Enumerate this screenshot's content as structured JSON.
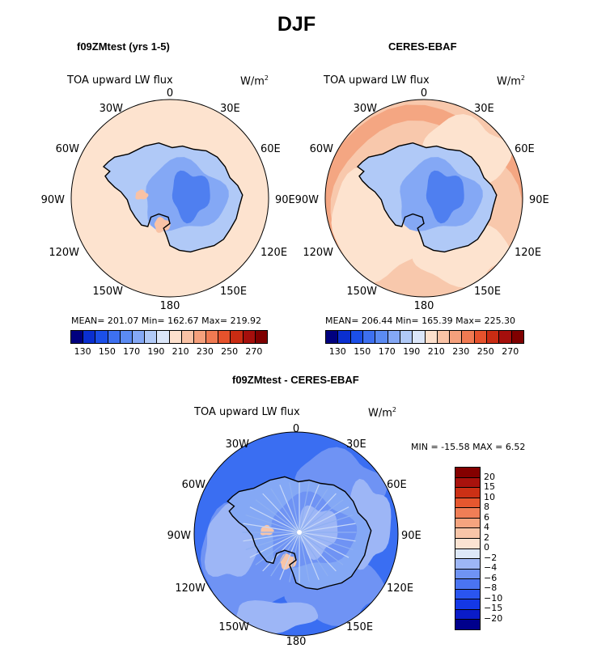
{
  "title": "DJF",
  "panels": [
    {
      "title": "f09ZMtest (yrs 1-5)",
      "variable": "TOA upward LW flux",
      "units": "W/m",
      "units_exp": "2",
      "stats": "MEAN= 201.07    Min= 162.67    Max= 219.92",
      "colorbar_ticks": [
        "130",
        "150",
        "170",
        "190",
        "210",
        "230",
        "250",
        "270"
      ]
    },
    {
      "title": "CERES-EBAF",
      "variable": "TOA upward LW flux",
      "units": "W/m",
      "units_exp": "2",
      "stats": "MEAN= 206.44    Min= 165.39    Max= 225.30",
      "colorbar_ticks": [
        "130",
        "150",
        "170",
        "190",
        "210",
        "230",
        "250",
        "270"
      ]
    },
    {
      "title": "f09ZMtest - CERES-EBAF",
      "variable": "TOA upward LW flux",
      "units": "W/m",
      "units_exp": "2",
      "stats": "MIN = -15.58 MAX =    6.52",
      "colorbar_ticks": [
        "20",
        "15",
        "10",
        "8",
        "6",
        "4",
        "2",
        "0",
        "−2",
        "−4",
        "−6",
        "−8",
        "−10",
        "−15",
        "−20"
      ]
    }
  ],
  "lon_labels": {
    "top": "0",
    "bottom": "180",
    "w30": "30W",
    "e30": "30E",
    "w60": "60W",
    "e60": "60E",
    "w90": "90W",
    "e90": "90E",
    "w120": "120W",
    "e120": "120E",
    "w150": "150W",
    "e150": "150E"
  },
  "chart_data": [
    {
      "type": "heatmap",
      "projection": "south polar stereographic",
      "title": "f09ZMtest (yrs 1-5)",
      "variable": "TOA upward LW flux",
      "units": "W/m2",
      "mean": 201.07,
      "min": 162.67,
      "max": 219.92,
      "contour_levels": [
        130,
        140,
        150,
        160,
        170,
        180,
        190,
        200,
        210,
        220,
        230,
        240,
        250,
        260,
        270
      ],
      "colors": [
        "#00007f",
        "#0a2fd0",
        "#1b4fe8",
        "#3d70f0",
        "#5b8bf2",
        "#84a8f5",
        "#b0c9f7",
        "#dbe6f9",
        "#fde0cc",
        "#f9c2a5",
        "#f5a07c",
        "#f07a52",
        "#e6522c",
        "#c92c13",
        "#a50f0c",
        "#7f0000"
      ]
    },
    {
      "type": "heatmap",
      "projection": "south polar stereographic",
      "title": "CERES-EBAF",
      "variable": "TOA upward LW flux",
      "units": "W/m2",
      "mean": 206.44,
      "min": 165.39,
      "max": 225.3,
      "contour_levels": [
        130,
        140,
        150,
        160,
        170,
        180,
        190,
        200,
        210,
        220,
        230,
        240,
        250,
        260,
        270
      ],
      "colors": [
        "#00007f",
        "#0a2fd0",
        "#1b4fe8",
        "#3d70f0",
        "#5b8bf2",
        "#84a8f5",
        "#b0c9f7",
        "#dbe6f9",
        "#fde0cc",
        "#f9c2a5",
        "#f5a07c",
        "#f07a52",
        "#e6522c",
        "#c92c13",
        "#a50f0c",
        "#7f0000"
      ]
    },
    {
      "type": "heatmap",
      "projection": "south polar stereographic",
      "title": "f09ZMtest - CERES-EBAF",
      "variable": "TOA upward LW flux",
      "units": "W/m2",
      "min": -15.58,
      "max": 6.52,
      "contour_levels": [
        -20,
        -15,
        -10,
        -8,
        -6,
        -4,
        -2,
        0,
        2,
        4,
        6,
        8,
        10,
        15,
        20
      ],
      "colors": [
        "#00008c",
        "#0a1cc8",
        "#1438e6",
        "#2a55f0",
        "#4a74f2",
        "#6f93f4",
        "#9db6f6",
        "#dde8f8",
        "#fbe3d2",
        "#f8c5a8",
        "#f5a47f",
        "#f07e56",
        "#e6572f",
        "#cc3015",
        "#a9120d",
        "#840000"
      ]
    }
  ]
}
